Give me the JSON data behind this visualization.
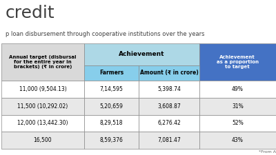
{
  "title_partial": "credit",
  "subtitle": "p loan disbursement through cooperative institutions over the years",
  "col_headers": [
    "Annual target (disbursal\nfor the entire year in\nbrackets) (₹ in crore)",
    "Farmers",
    "Amount (₹ in crore)",
    "Achievement\nas a proportion\nto target"
  ],
  "achievement_header": "Achievement",
  "rows": [
    [
      "11,000 (9,504.13)",
      "7,14,595",
      "5,398.74",
      "49%"
    ],
    [
      "11,500 (10,292.02)",
      "5,20,659",
      "3,608.87",
      "31%"
    ],
    [
      "12,000 (13,442.30)",
      "8,29,518",
      "6,276.42",
      "52%"
    ],
    [
      "16,500",
      "8,59,376",
      "7,081.47",
      "43%"
    ]
  ],
  "header_bg_col0": "#d9d9d9",
  "header_bg_achievement": "#add8e6",
  "header_bg_col3": "#4472c4",
  "header_text_col3": "#ffffff",
  "row_bg_even": "#ffffff",
  "row_bg_odd": "#e8e8e8",
  "footer": "*From A",
  "bg_color": "#ffffff",
  "title_color": "#404040",
  "subtitle_color": "#404040",
  "border_color": "#888888",
  "header_sub_bg": "#87ceeb"
}
